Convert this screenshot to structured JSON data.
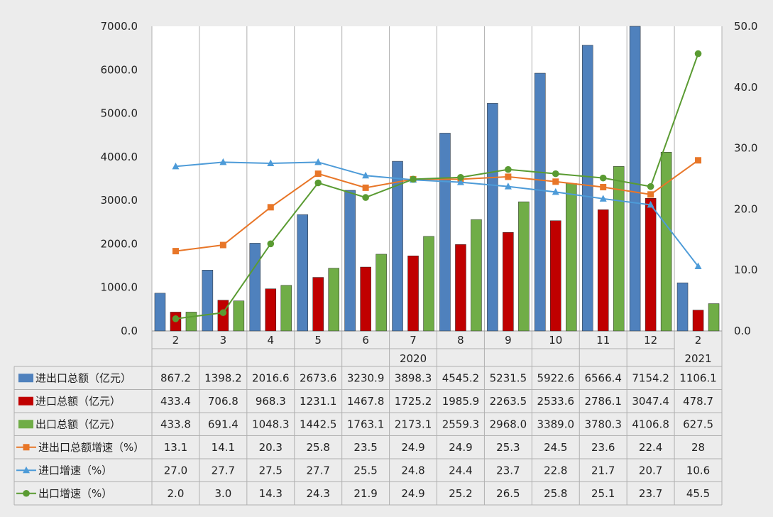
{
  "chart_data": {
    "type": "bar",
    "categories": [
      "2",
      "3",
      "4",
      "5",
      "6",
      "7",
      "8",
      "9",
      "10",
      "11",
      "12",
      "2"
    ],
    "year_labels": [
      {
        "label": "2020",
        "from": 0,
        "to": 10
      },
      {
        "label": "2021",
        "from": 11,
        "to": 11
      }
    ],
    "y_left": {
      "lim": [
        0,
        7000
      ],
      "ticks": [
        "0.0",
        "1000.0",
        "2000.0",
        "3000.0",
        "4000.0",
        "5000.0",
        "6000.0",
        "7000.0"
      ]
    },
    "y_right": {
      "lim": [
        0,
        50
      ],
      "ticks": [
        "0.0",
        "10.0",
        "20.0",
        "30.0",
        "40.0",
        "50.0"
      ]
    },
    "grid": "vertical",
    "series": [
      {
        "name": "进出口总额（亿元）",
        "kind": "bar",
        "axis": "left",
        "color": "#4f81bd",
        "values": [
          867.2,
          1398.2,
          2016.6,
          2673.6,
          3230.9,
          3898.3,
          4545.2,
          5231.5,
          5922.6,
          6566.4,
          7154.2,
          1106.1
        ],
        "labels": [
          "867.2",
          "1398.2",
          "2016.6",
          "2673.6",
          "3230.9",
          "3898.3",
          "4545.2",
          "5231.5",
          "5922.6",
          "6566.4",
          "7154.2",
          "1106.1"
        ]
      },
      {
        "name": "进口总额（亿元）",
        "kind": "bar",
        "axis": "left",
        "color": "#c00000",
        "values": [
          433.4,
          706.8,
          968.3,
          1231.1,
          1467.8,
          1725.2,
          1985.9,
          2263.5,
          2533.6,
          2786.1,
          3047.4,
          478.7
        ],
        "labels": [
          "433.4",
          "706.8",
          "968.3",
          "1231.1",
          "1467.8",
          "1725.2",
          "1985.9",
          "2263.5",
          "2533.6",
          "2786.1",
          "3047.4",
          "478.7"
        ]
      },
      {
        "name": "出口总额（亿元）",
        "kind": "bar",
        "axis": "left",
        "color": "#70ad47",
        "values": [
          433.8,
          691.4,
          1048.3,
          1442.5,
          1763.1,
          2173.1,
          2559.3,
          2968.0,
          3389.0,
          3780.3,
          4106.8,
          627.5
        ],
        "labels": [
          "433.8",
          "691.4",
          "1048.3",
          "1442.5",
          "1763.1",
          "2173.1",
          "2559.3",
          "2968.0",
          "3389.0",
          "3780.3",
          "4106.8",
          "627.5"
        ]
      },
      {
        "name": "进出口总额增速（%）",
        "kind": "line",
        "axis": "right",
        "color": "#e87628",
        "marker": "square",
        "values": [
          13.1,
          14.1,
          20.3,
          25.8,
          23.5,
          24.9,
          24.9,
          25.3,
          24.5,
          23.6,
          22.4,
          28
        ],
        "labels": [
          "13.1",
          "14.1",
          "20.3",
          "25.8",
          "23.5",
          "24.9",
          "24.9",
          "25.3",
          "24.5",
          "23.6",
          "22.4",
          "28"
        ]
      },
      {
        "name": "进口增速（%）",
        "kind": "line",
        "axis": "right",
        "color": "#4d9bd8",
        "marker": "triangle",
        "values": [
          27.0,
          27.7,
          27.5,
          27.7,
          25.5,
          24.8,
          24.4,
          23.7,
          22.8,
          21.7,
          20.7,
          10.6
        ],
        "labels": [
          "27.0",
          "27.7",
          "27.5",
          "27.7",
          "25.5",
          "24.8",
          "24.4",
          "23.7",
          "22.8",
          "21.7",
          "20.7",
          "10.6"
        ]
      },
      {
        "name": "出口增速（%）",
        "kind": "line",
        "axis": "right",
        "color": "#5a9b32",
        "marker": "circle",
        "values": [
          2.0,
          3.0,
          14.3,
          24.3,
          21.9,
          24.9,
          25.2,
          26.5,
          25.8,
          25.1,
          23.7,
          45.5
        ],
        "labels": [
          "2.0",
          "3.0",
          "14.3",
          "24.3",
          "21.9",
          "24.9",
          "25.2",
          "26.5",
          "25.8",
          "25.1",
          "23.7",
          "45.5"
        ]
      }
    ]
  }
}
